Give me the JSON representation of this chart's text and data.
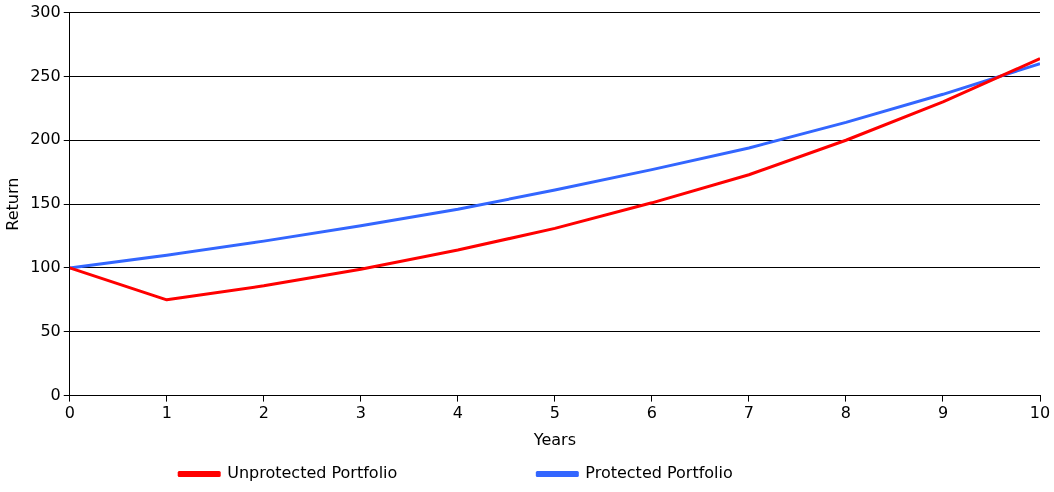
{
  "chart_data": {
    "type": "line",
    "xlabel": "Years",
    "ylabel": "Return",
    "x": [
      0,
      1,
      2,
      3,
      4,
      5,
      6,
      7,
      8,
      9,
      10
    ],
    "series": [
      {
        "name": "Unprotected Portfolio",
        "color": "#ff0000",
        "values": [
          100,
          75,
          86,
          99,
          114,
          131,
          151,
          173,
          200,
          230,
          264
        ]
      },
      {
        "name": "Protected Portfolio",
        "color": "#3366ff",
        "values": [
          100,
          110,
          121,
          133,
          146,
          161,
          177,
          194,
          214,
          236,
          260
        ]
      }
    ],
    "xlim": [
      0,
      10
    ],
    "xticks": [
      0,
      1,
      2,
      3,
      4,
      5,
      6,
      7,
      8,
      9,
      10
    ],
    "ylim": [
      0,
      300
    ],
    "yticks": [
      0,
      50,
      100,
      150,
      200,
      250,
      300
    ],
    "grid": "y",
    "legend": "bottom",
    "marker": "none",
    "line_style": "solid"
  }
}
